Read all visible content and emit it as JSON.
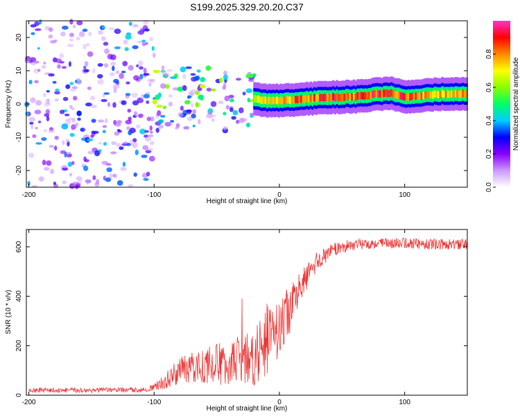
{
  "title": "S199.2025.329.20.20.C37",
  "chart_data": [
    {
      "type": "heatmap",
      "title": "S199.2025.329.20.20.C37",
      "xlabel": "Height of straight line (km)",
      "ylabel": "Frequency (Hz)",
      "xlim": [
        -202,
        150
      ],
      "ylim": [
        -25,
        25
      ],
      "xticks": [
        -200,
        -100,
        0,
        100
      ],
      "yticks": [
        -20,
        -10,
        0,
        10,
        20
      ],
      "colorbar": {
        "label": "Normalized spectral amplitude",
        "range": [
          0,
          1
        ],
        "ticks": [
          "0.0",
          "0.2",
          "0.4",
          "0.6",
          "0.8"
        ],
        "tick_values": [
          0.0,
          0.2,
          0.4,
          0.6,
          0.8
        ],
        "colors": [
          "#ffffff",
          "#cc99ff",
          "#8800ff",
          "#0000ff",
          "#00ccff",
          "#00ff66",
          "#88ff00",
          "#ffff00",
          "#ff8800",
          "#ff0000",
          "#ff33cc"
        ]
      },
      "noise_regions": [
        {
          "x": [
            -202,
            -100
          ],
          "y": [
            -25,
            25
          ],
          "density": 0.55,
          "max_amp": 0.35
        },
        {
          "x": [
            -100,
            -20
          ],
          "y": [
            -8,
            11
          ],
          "density": 0.7,
          "max_amp": 0.6
        }
      ],
      "signal_track": [
        {
          "x": -20,
          "f": 1.5,
          "amp": 0.65
        },
        {
          "x": -10,
          "f": 1.0,
          "amp": 0.75
        },
        {
          "x": 0,
          "f": 1.0,
          "amp": 0.8
        },
        {
          "x": 20,
          "f": 1.5,
          "amp": 0.88
        },
        {
          "x": 40,
          "f": 2.0,
          "amp": 0.95
        },
        {
          "x": 60,
          "f": 2.2,
          "amp": 0.9
        },
        {
          "x": 80,
          "f": 3.0,
          "amp": 0.95
        },
        {
          "x": 90,
          "f": 3.2,
          "amp": 0.95
        },
        {
          "x": 100,
          "f": 2.0,
          "amp": 0.9
        },
        {
          "x": 110,
          "f": 2.5,
          "amp": 0.85
        },
        {
          "x": 130,
          "f": 3.0,
          "amp": 0.8
        },
        {
          "x": 150,
          "f": 3.0,
          "amp": 0.8
        }
      ]
    },
    {
      "type": "line",
      "xlabel": "Height of straight line (km)",
      "ylabel": "SNR (10 * v/v)",
      "xlim": [
        -202,
        150
      ],
      "ylim": [
        0,
        670
      ],
      "xticks": [
        -200,
        -100,
        0,
        100
      ],
      "yticks": [
        0,
        200,
        400,
        600
      ],
      "color": "#ee3333",
      "series": [
        {
          "name": "SNR",
          "x": [
            -200,
            -150,
            -110,
            -100,
            -90,
            -80,
            -60,
            -40,
            -20,
            -10,
            0,
            10,
            20,
            30,
            40,
            50,
            60,
            80,
            100,
            120,
            150
          ],
          "values": [
            20,
            20,
            22,
            30,
            60,
            100,
            120,
            130,
            160,
            210,
            280,
            360,
            460,
            540,
            580,
            600,
            610,
            615,
            615,
            610,
            610
          ],
          "noise": [
            10,
            10,
            10,
            15,
            35,
            55,
            75,
            90,
            120,
            150,
            120,
            90,
            60,
            40,
            30,
            25,
            22,
            22,
            22,
            22,
            22
          ]
        }
      ]
    }
  ]
}
